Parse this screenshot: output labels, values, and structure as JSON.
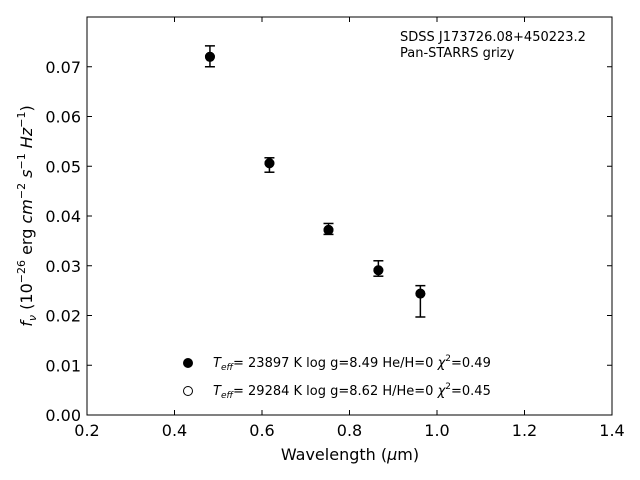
{
  "chart_data": {
    "type": "scatter",
    "annotations": [
      "SDSS J173726.08+450223.2",
      "Pan-STARRS grizy"
    ],
    "xlabel": {
      "main": "Wavelength (",
      "mu": "μ",
      "unit": "m)"
    },
    "ylabel": {
      "f": "f",
      "nu": "ν",
      "open": " (10",
      "exp1": "−26",
      "erg": " erg ",
      "cm": "cm",
      "exp2": "−2",
      "s": " s",
      "exp3": "−1",
      "hz": " Hz",
      "exp4": "−1",
      "close": ")"
    },
    "xlim": [
      0.2,
      1.4
    ],
    "ylim": [
      0.0,
      0.08
    ],
    "xticks": [
      "0.2",
      "0.4",
      "0.6",
      "0.8",
      "1.0",
      "1.2",
      "1.4"
    ],
    "yticks": [
      "0.00",
      "0.01",
      "0.02",
      "0.03",
      "0.04",
      "0.05",
      "0.06",
      "0.07"
    ],
    "observed": [
      {
        "x": 0.481,
        "y": 0.072,
        "ylo": 0.07,
        "yhi": 0.0742
      },
      {
        "x": 0.617,
        "y": 0.0506,
        "ylo": 0.0488,
        "yhi": 0.0517
      },
      {
        "x": 0.752,
        "y": 0.0372,
        "ylo": 0.0363,
        "yhi": 0.0385
      },
      {
        "x": 0.866,
        "y": 0.0291,
        "ylo": 0.0279,
        "yhi": 0.031
      },
      {
        "x": 0.962,
        "y": 0.0244,
        "ylo": 0.0197,
        "yhi": 0.026
      }
    ],
    "legend": [
      {
        "marker": "filled",
        "T": "T",
        "sub": "eff",
        "text1": "= 23897 K  log g=8.49  He/H=0  ",
        "chi": "χ",
        "sup": "2",
        "text2": "=0.49"
      },
      {
        "marker": "open",
        "T": "T",
        "sub": "eff",
        "text1": "= 29284 K  log g=8.62  H/He=0  ",
        "chi": "χ",
        "sup": "2",
        "text2": "=0.45"
      }
    ],
    "legend_placement": "lower-center",
    "grid": false
  }
}
